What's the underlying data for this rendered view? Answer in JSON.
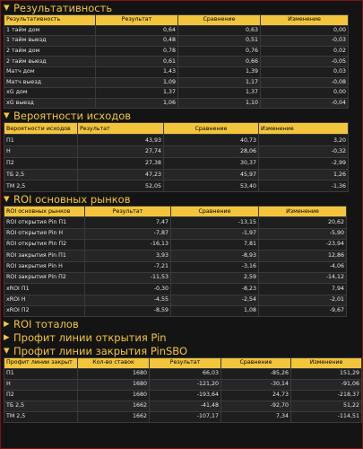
{
  "sections": {
    "performance": {
      "title": "Результативность",
      "headers": [
        "Результативность",
        "Результат",
        "Сравнение",
        "Изменение"
      ],
      "rows": [
        [
          "1 тайм дом",
          "0,64",
          "0,63",
          "0,00"
        ],
        [
          "1 тайм выезд",
          "0,48",
          "0,51",
          "-0,03"
        ],
        [
          "2 тайм дом",
          "0,78",
          "0,76",
          "0,02"
        ],
        [
          "2 тайм выезд",
          "0,61",
          "0,66",
          "-0,05"
        ],
        [
          "Матч дом",
          "1,43",
          "1,39",
          "0,03"
        ],
        [
          "Матч выезд",
          "1,09",
          "1,17",
          "-0,08"
        ],
        [
          "xG дом",
          "1,37",
          "1,37",
          "0,00"
        ],
        [
          "xG выезд",
          "1,06",
          "1,10",
          "-0,04"
        ]
      ]
    },
    "probabilities": {
      "title": "Вероятности исходов",
      "headers": [
        "Вероятности исходов",
        "Результат",
        "Сравнение",
        "Изменение"
      ],
      "rows": [
        [
          "П1",
          "43,93",
          "40,73",
          "3,20"
        ],
        [
          "Н",
          "27,74",
          "28,06",
          "-0,32"
        ],
        [
          "П2",
          "27,38",
          "30,37",
          "-2,99"
        ],
        [
          "ТБ 2,5",
          "47,23",
          "45,97",
          "1,26"
        ],
        [
          "ТМ 2,5",
          "52,05",
          "53,40",
          "-1,36"
        ]
      ]
    },
    "roi_main": {
      "title": "ROI основных рынков",
      "headers": [
        "ROI основных рынков",
        "Результат",
        "Сравнение",
        "Изменение"
      ],
      "rows": [
        [
          "ROI открытия Pin П1",
          "7,47",
          "-13,15",
          "20,62"
        ],
        [
          "ROI открытия Pin Н",
          "-7,87",
          "-1,97",
          "-5,90"
        ],
        [
          "ROI открытия Pin П2",
          "-16,13",
          "7,81",
          "-23,94"
        ],
        [
          "ROI закрытия Pin П1",
          "3,93",
          "-8,93",
          "12,86"
        ],
        [
          "ROI закрытия Pin Н",
          "-7,21",
          "-3,16",
          "-4,06"
        ],
        [
          "ROI закрытия Pin П2",
          "-11,53",
          "2,59",
          "-14,12"
        ],
        [
          "xROI П1",
          "-0,30",
          "-8,23",
          "7,94"
        ],
        [
          "xROI Н",
          "-4,55",
          "-2,54",
          "-2,01"
        ],
        [
          "xROI П2",
          "-8,59",
          "1,08",
          "-9,67"
        ]
      ]
    },
    "roi_totals": {
      "title": "ROI тоталов"
    },
    "pin_open": {
      "title": "Профит линии открытия Pin"
    },
    "pinsbo_close": {
      "title": "Профит линии закрытия PinSBO",
      "headers": [
        "Профит линии закрыт",
        "Кол-во ставок",
        "Результат",
        "Сравнение",
        "Изменение"
      ],
      "rows": [
        [
          "П1",
          "1680",
          "66,03",
          "-85,26",
          "151,29"
        ],
        [
          "Н",
          "1680",
          "-121,20",
          "-30,14",
          "-91,06"
        ],
        [
          "П2",
          "1680",
          "-193,64",
          "24,73",
          "-218,37"
        ],
        [
          "ТБ 2,5",
          "1662",
          "-41,48",
          "-92,70",
          "51,22"
        ],
        [
          "ТМ 2,5",
          "1662",
          "-107,17",
          "7,34",
          "-114,51"
        ]
      ]
    }
  },
  "icons": {
    "expanded": "▼",
    "collapsed": "▶"
  },
  "colors": {
    "accent": "#f2c53d",
    "background": "#141414",
    "border": "#7a1414"
  }
}
